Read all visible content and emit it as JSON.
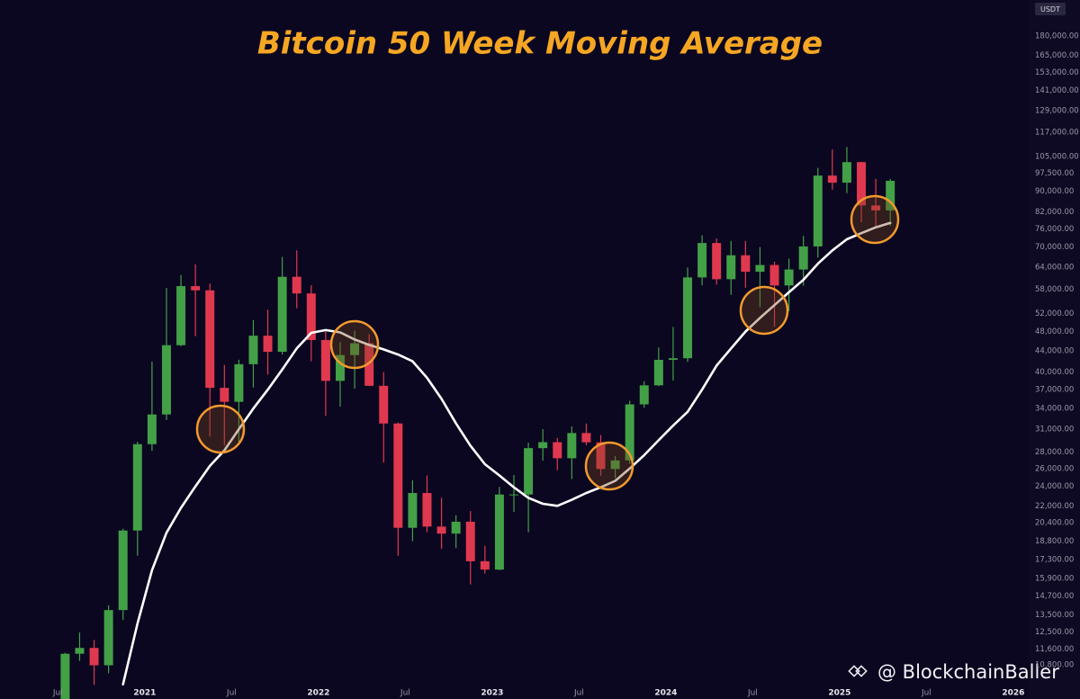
{
  "chart_data": {
    "type": "candlestick",
    "title": "Bitcoin 50 Week Moving Average",
    "currency_label": "USDT",
    "watermark": "@ BlockchainBaller",
    "categories": [
      "2020-07",
      "2020-08",
      "2020-09",
      "2020-10",
      "2020-11",
      "2020-12",
      "2021-01",
      "2021-02",
      "2021-03",
      "2021-04",
      "2021-05",
      "2021-06",
      "2021-07",
      "2021-08",
      "2021-09",
      "2021-10",
      "2021-11",
      "2021-12",
      "2022-01",
      "2022-02",
      "2022-03",
      "2022-04",
      "2022-05",
      "2022-06",
      "2022-07",
      "2022-08",
      "2022-09",
      "2022-10",
      "2022-11",
      "2022-12",
      "2023-01",
      "2023-02",
      "2023-03",
      "2023-04",
      "2023-05",
      "2023-06",
      "2023-07",
      "2023-08",
      "2023-09",
      "2023-10",
      "2023-11",
      "2023-12",
      "2024-01",
      "2024-02",
      "2024-03",
      "2024-04",
      "2024-05",
      "2024-06",
      "2024-07",
      "2024-08",
      "2024-09",
      "2024-10",
      "2024-11",
      "2024-12",
      "2025-01",
      "2025-02",
      "2025-03",
      "2025-04"
    ],
    "open": [
      9140,
      11350,
      11650,
      10780,
      13800,
      19700,
      28990,
      33110,
      45140,
      58800,
      57700,
      37300,
      35040,
      41460,
      47100,
      43820,
      61300,
      56900,
      46200,
      38480,
      43190,
      45540,
      37640,
      31800,
      19940,
      23300,
      20050,
      19430,
      20490,
      17170,
      16540,
      23140,
      23150,
      28480,
      29250,
      27220,
      30470,
      29230,
      25940,
      26960,
      34640,
      37720,
      42280,
      42580,
      61130,
      71300,
      60640,
      67500,
      62700,
      64620,
      58970,
      63330,
      70220,
      96400,
      93400,
      102400,
      84350,
      82500
    ],
    "high": [
      11400,
      12480,
      12070,
      14100,
      19860,
      29300,
      41950,
      58350,
      61800,
      64850,
      59500,
      41330,
      42300,
      50500,
      52900,
      67000,
      69000,
      59050,
      47990,
      45800,
      48200,
      47450,
      40000,
      31950,
      24670,
      25200,
      22800,
      21100,
      21480,
      18390,
      23950,
      25250,
      29190,
      31000,
      29820,
      31390,
      31800,
      30200,
      27490,
      35200,
      38420,
      44700,
      48970,
      63900,
      73800,
      72800,
      71980,
      71950,
      70000,
      65600,
      66500,
      73600,
      99800,
      108350,
      109600,
      102500,
      95000,
      95000
    ],
    "low": [
      8980,
      10990,
      9880,
      10400,
      13200,
      17600,
      28130,
      32300,
      44950,
      47000,
      30000,
      28800,
      29300,
      37330,
      39600,
      43280,
      53250,
      42000,
      32900,
      34300,
      37150,
      37600,
      26700,
      17600,
      18780,
      19550,
      18150,
      18200,
      15480,
      16250,
      16500,
      21400,
      19550,
      26940,
      25800,
      24800,
      28860,
      25170,
      24900,
      26550,
      34110,
      37600,
      38550,
      41880,
      59000,
      59200,
      56550,
      58400,
      53500,
      49000,
      52550,
      58900,
      66800,
      90500,
      89160,
      78250,
      76600,
      77000
    ],
    "close": [
      11350,
      11650,
      10780,
      13800,
      19700,
      28990,
      33110,
      45140,
      58800,
      57700,
      37300,
      35040,
      41460,
      47100,
      43820,
      61300,
      56900,
      46200,
      38480,
      43190,
      45540,
      37640,
      31800,
      19940,
      23300,
      20050,
      19430,
      20490,
      17170,
      16540,
      23140,
      23150,
      28480,
      29250,
      27220,
      30470,
      29230,
      25940,
      26960,
      34640,
      37720,
      42280,
      42580,
      61130,
      71300,
      60640,
      67500,
      62700,
      64620,
      58970,
      63330,
      70220,
      96400,
      93400,
      102400,
      84350,
      82500,
      94200
    ],
    "up_color": "#43a047",
    "down_color": "#e0394f",
    "moving_average": {
      "color": "#ffffff",
      "values": [
        null,
        null,
        null,
        null,
        9900,
        13000,
        16500,
        19500,
        21800,
        24000,
        26300,
        28200,
        31000,
        34000,
        37000,
        40500,
        44500,
        47700,
        48300,
        47800,
        46300,
        45200,
        44300,
        43300,
        42000,
        39000,
        35500,
        31800,
        28800,
        26500,
        25200,
        23900,
        22800,
        22200,
        22000,
        22600,
        23300,
        23900,
        24600,
        26000,
        27600,
        29500,
        31500,
        33500,
        37000,
        41200,
        44500,
        48000,
        51000,
        54000,
        57200,
        60500,
        65000,
        69000,
        72500,
        74500,
        76500,
        78000
      ]
    },
    "xlim": [
      "2020-03",
      "2026-02"
    ],
    "xticks": [
      {
        "value": "2020-07",
        "label": "Jul"
      },
      {
        "value": "2021-01",
        "label": "2021"
      },
      {
        "value": "2021-07",
        "label": "Jul"
      },
      {
        "value": "2022-01",
        "label": "2022"
      },
      {
        "value": "2022-07",
        "label": "Jul"
      },
      {
        "value": "2023-01",
        "label": "2023"
      },
      {
        "value": "2023-07",
        "label": "Jul"
      },
      {
        "value": "2024-01",
        "label": "2024"
      },
      {
        "value": "2024-07",
        "label": "Jul"
      },
      {
        "value": "2025-01",
        "label": "2025"
      },
      {
        "value": "2025-07",
        "label": "Jul"
      },
      {
        "value": "2026-01",
        "label": "2026"
      }
    ],
    "ylim": [
      9270,
      211500
    ],
    "log_scale": true,
    "grid": false,
    "yticks": [
      {
        "value": 10800,
        "label": "10,800.00"
      },
      {
        "value": 11600,
        "label": "11,600.00"
      },
      {
        "value": 12500,
        "label": "12,500.00"
      },
      {
        "value": 13500,
        "label": "13,500.00"
      },
      {
        "value": 14700,
        "label": "14,700.00"
      },
      {
        "value": 15900,
        "label": "15,900.00"
      },
      {
        "value": 17300,
        "label": "17,300.00"
      },
      {
        "value": 18800,
        "label": "18,800.00"
      },
      {
        "value": 20400,
        "label": "20,400.00"
      },
      {
        "value": 22000,
        "label": "22,000.00"
      },
      {
        "value": 24000,
        "label": "24,000.00"
      },
      {
        "value": 26000,
        "label": "26,000.00"
      },
      {
        "value": 28000,
        "label": "28,000.00"
      },
      {
        "value": 31000,
        "label": "31,000.00"
      },
      {
        "value": 34000,
        "label": "34,000.00"
      },
      {
        "value": 37000,
        "label": "37,000.00"
      },
      {
        "value": 40000,
        "label": "40,000.00"
      },
      {
        "value": 44000,
        "label": "44,000.00"
      },
      {
        "value": 48000,
        "label": "48,000.00"
      },
      {
        "value": 52000,
        "label": "52,000.00"
      },
      {
        "value": 58000,
        "label": "58,000.00"
      },
      {
        "value": 64000,
        "label": "64,000.00"
      },
      {
        "value": 70000,
        "label": "70,000.00"
      },
      {
        "value": 76000,
        "label": "76,000.00"
      },
      {
        "value": 82000,
        "label": "82,000.00"
      },
      {
        "value": 90000,
        "label": "90,000.00"
      },
      {
        "value": 97500,
        "label": "97,500.00"
      },
      {
        "value": 105000,
        "label": "105,000.00"
      },
      {
        "value": 117000,
        "label": "117,000.00"
      },
      {
        "value": 129000,
        "label": "129,000.00"
      },
      {
        "value": 141000,
        "label": "141,000.00"
      },
      {
        "value": 153000,
        "label": "153,000.00"
      },
      {
        "value": 165000,
        "label": "165,000.00"
      },
      {
        "value": 180000,
        "label": "180,000.00"
      }
    ]
  }
}
